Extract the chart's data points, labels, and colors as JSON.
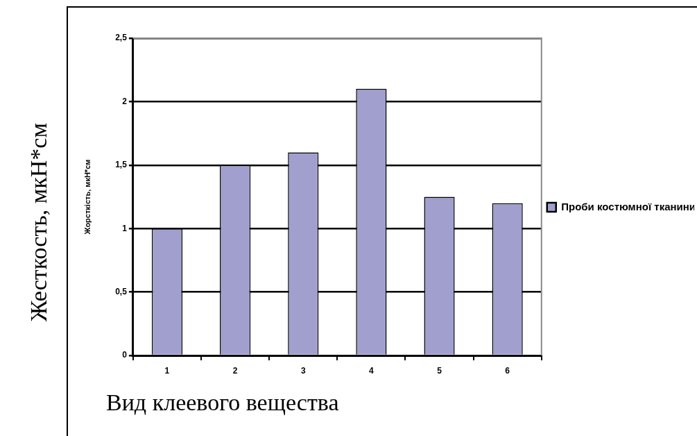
{
  "chart_data": {
    "type": "bar",
    "xlabel": "Вид клеевого вещества",
    "ylabel": "Жорсткість, мкН*см",
    "annotations": [
      "Жесткость, мкН*см"
    ],
    "categories": [
      "1",
      "2",
      "3",
      "4",
      "5",
      "6"
    ],
    "series": [
      {
        "name": "Проби костюмної тканини",
        "color": "#a09fcd",
        "values": [
          1.0,
          1.5,
          1.6,
          2.1,
          1.25,
          1.2
        ]
      }
    ],
    "ylim": [
      0,
      2.5
    ],
    "yticks": [
      0,
      {
        "value": 0.5,
        "label": "0,5"
      },
      1,
      {
        "value": 1.5,
        "label": "1,5"
      },
      2,
      {
        "value": 2.5,
        "label": "2,5"
      }
    ],
    "grid": "y",
    "legend": "right"
  }
}
